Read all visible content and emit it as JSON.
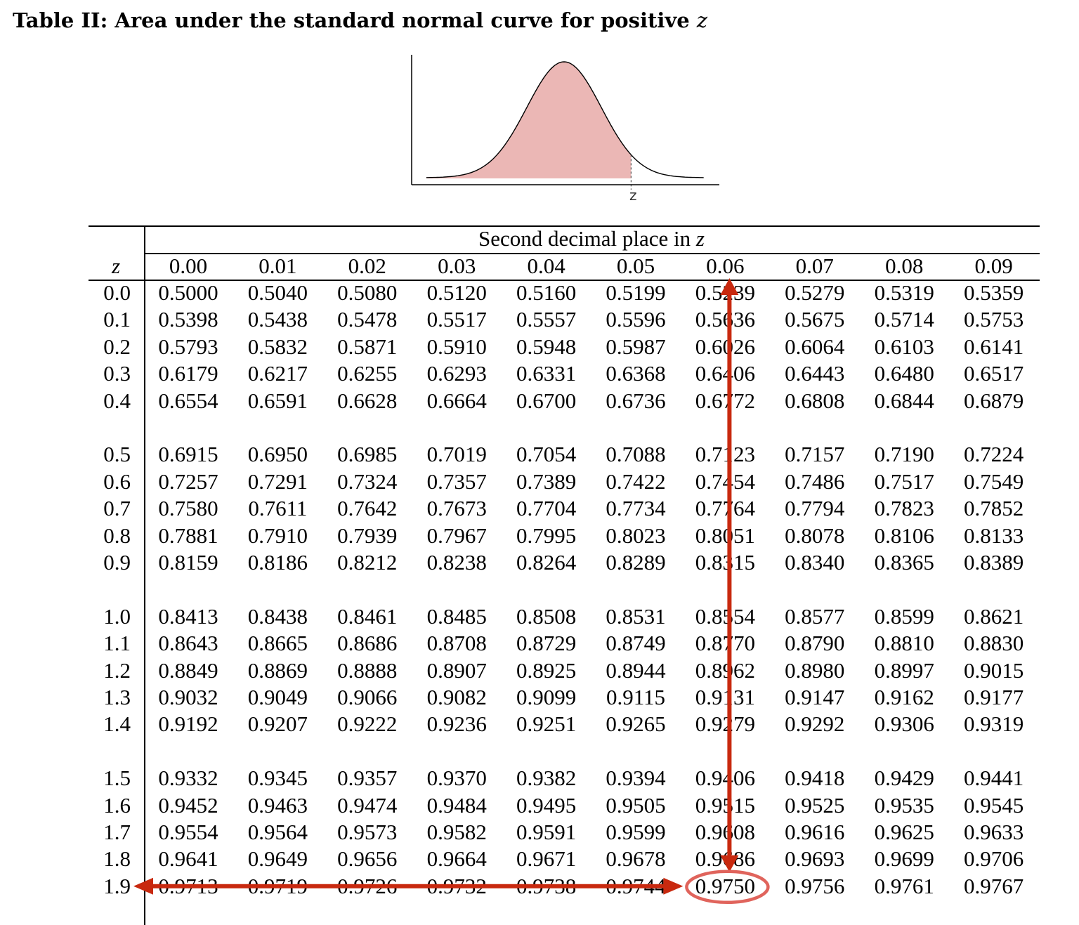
{
  "title": {
    "text": "Table II: Area under the standard normal curve for positive",
    "variable": "z"
  },
  "figure": {
    "z_label": "z",
    "fill_color": "#ebb7b5",
    "line_color": "#000000"
  },
  "table": {
    "super_header": "Second decimal place in",
    "super_header_var": "z",
    "row_header": "z",
    "columns": [
      "0.00",
      "0.01",
      "0.02",
      "0.03",
      "0.04",
      "0.05",
      "0.06",
      "0.07",
      "0.08",
      "0.09"
    ],
    "rows": [
      {
        "z": "0.0",
        "values": [
          "0.5000",
          "0.5040",
          "0.5080",
          "0.5120",
          "0.5160",
          "0.5199",
          "0.5239",
          "0.5279",
          "0.5319",
          "0.5359"
        ]
      },
      {
        "z": "0.1",
        "values": [
          "0.5398",
          "0.5438",
          "0.5478",
          "0.5517",
          "0.5557",
          "0.5596",
          "0.5636",
          "0.5675",
          "0.5714",
          "0.5753"
        ]
      },
      {
        "z": "0.2",
        "values": [
          "0.5793",
          "0.5832",
          "0.5871",
          "0.5910",
          "0.5948",
          "0.5987",
          "0.6026",
          "0.6064",
          "0.6103",
          "0.6141"
        ]
      },
      {
        "z": "0.3",
        "values": [
          "0.6179",
          "0.6217",
          "0.6255",
          "0.6293",
          "0.6331",
          "0.6368",
          "0.6406",
          "0.6443",
          "0.6480",
          "0.6517"
        ]
      },
      {
        "z": "0.4",
        "values": [
          "0.6554",
          "0.6591",
          "0.6628",
          "0.6664",
          "0.6700",
          "0.6736",
          "0.6772",
          "0.6808",
          "0.6844",
          "0.6879"
        ]
      },
      {
        "z": "0.5",
        "values": [
          "0.6915",
          "0.6950",
          "0.6985",
          "0.7019",
          "0.7054",
          "0.7088",
          "0.7123",
          "0.7157",
          "0.7190",
          "0.7224"
        ]
      },
      {
        "z": "0.6",
        "values": [
          "0.7257",
          "0.7291",
          "0.7324",
          "0.7357",
          "0.7389",
          "0.7422",
          "0.7454",
          "0.7486",
          "0.7517",
          "0.7549"
        ]
      },
      {
        "z": "0.7",
        "values": [
          "0.7580",
          "0.7611",
          "0.7642",
          "0.7673",
          "0.7704",
          "0.7734",
          "0.7764",
          "0.7794",
          "0.7823",
          "0.7852"
        ]
      },
      {
        "z": "0.8",
        "values": [
          "0.7881",
          "0.7910",
          "0.7939",
          "0.7967",
          "0.7995",
          "0.8023",
          "0.8051",
          "0.8078",
          "0.8106",
          "0.8133"
        ]
      },
      {
        "z": "0.9",
        "values": [
          "0.8159",
          "0.8186",
          "0.8212",
          "0.8238",
          "0.8264",
          "0.8289",
          "0.8315",
          "0.8340",
          "0.8365",
          "0.8389"
        ]
      },
      {
        "z": "1.0",
        "values": [
          "0.8413",
          "0.8438",
          "0.8461",
          "0.8485",
          "0.8508",
          "0.8531",
          "0.8554",
          "0.8577",
          "0.8599",
          "0.8621"
        ]
      },
      {
        "z": "1.1",
        "values": [
          "0.8643",
          "0.8665",
          "0.8686",
          "0.8708",
          "0.8729",
          "0.8749",
          "0.8770",
          "0.8790",
          "0.8810",
          "0.8830"
        ]
      },
      {
        "z": "1.2",
        "values": [
          "0.8849",
          "0.8869",
          "0.8888",
          "0.8907",
          "0.8925",
          "0.8944",
          "0.8962",
          "0.8980",
          "0.8997",
          "0.9015"
        ]
      },
      {
        "z": "1.3",
        "values": [
          "0.9032",
          "0.9049",
          "0.9066",
          "0.9082",
          "0.9099",
          "0.9115",
          "0.9131",
          "0.9147",
          "0.9162",
          "0.9177"
        ]
      },
      {
        "z": "1.4",
        "values": [
          "0.9192",
          "0.9207",
          "0.9222",
          "0.9236",
          "0.9251",
          "0.9265",
          "0.9279",
          "0.9292",
          "0.9306",
          "0.9319"
        ]
      },
      {
        "z": "1.5",
        "values": [
          "0.9332",
          "0.9345",
          "0.9357",
          "0.9370",
          "0.9382",
          "0.9394",
          "0.9406",
          "0.9418",
          "0.9429",
          "0.9441"
        ]
      },
      {
        "z": "1.6",
        "values": [
          "0.9452",
          "0.9463",
          "0.9474",
          "0.9484",
          "0.9495",
          "0.9505",
          "0.9515",
          "0.9525",
          "0.9535",
          "0.9545"
        ]
      },
      {
        "z": "1.7",
        "values": [
          "0.9554",
          "0.9564",
          "0.9573",
          "0.9582",
          "0.9591",
          "0.9599",
          "0.9608",
          "0.9616",
          "0.9625",
          "0.9633"
        ]
      },
      {
        "z": "1.8",
        "values": [
          "0.9641",
          "0.9649",
          "0.9656",
          "0.9664",
          "0.9671",
          "0.9678",
          "0.9686",
          "0.9693",
          "0.9699",
          "0.9706"
        ]
      },
      {
        "z": "1.9",
        "values": [
          "0.9713",
          "0.9719",
          "0.9726",
          "0.9732",
          "0.9738",
          "0.9744",
          "0.9750",
          "0.9756",
          "0.9761",
          "0.9767"
        ]
      }
    ]
  },
  "highlight": {
    "row_z": "1.9",
    "column": "0.06",
    "value": "0.9750",
    "arrow_color": "#c8290f",
    "circle_color": "#e0645c"
  }
}
